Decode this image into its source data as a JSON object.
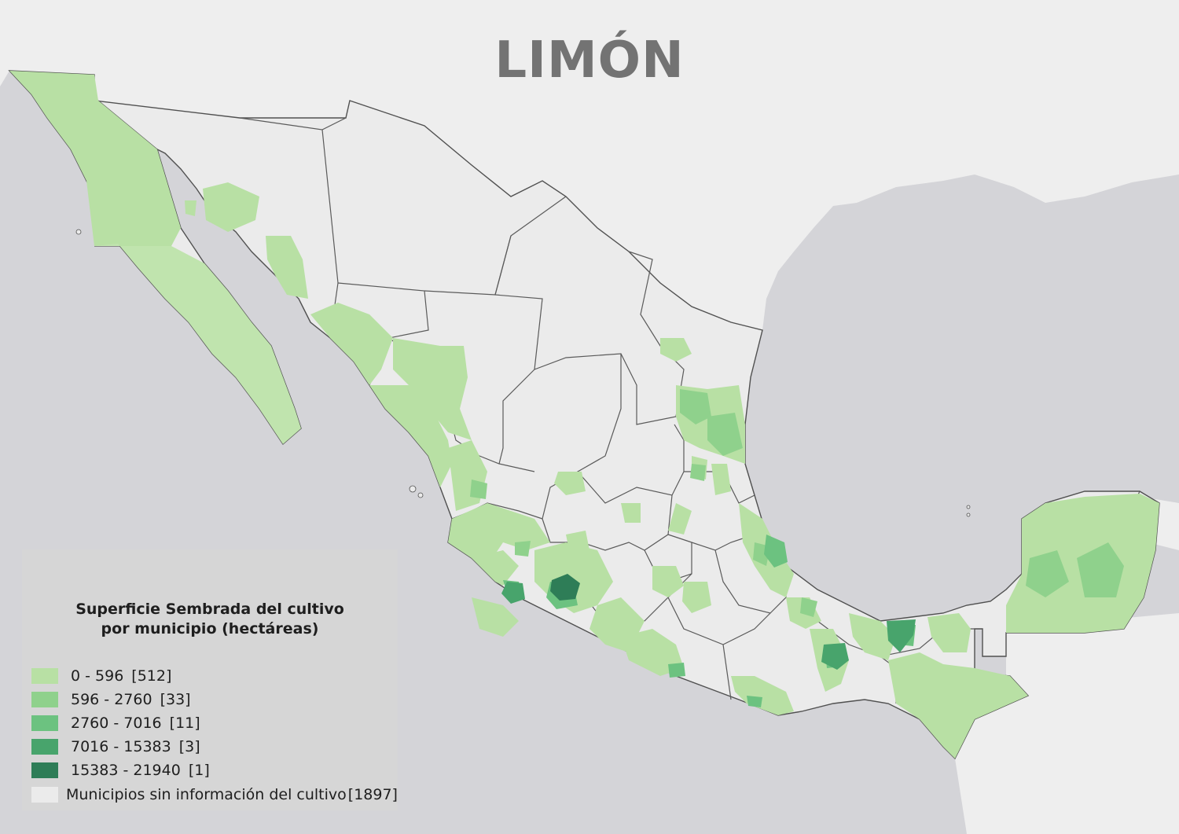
{
  "title": "LIMÓN",
  "colors": {
    "ocean": "#d4d4d8",
    "land_background": "#eeeeee",
    "no_info": "#ebebeb",
    "border": "#505050",
    "class_1": "#b8e0a4",
    "class_2": "#8fd18c",
    "class_3": "#6cc280",
    "class_4": "#48a46c",
    "class_5": "#2e7d57"
  },
  "legend": {
    "title_line1": "Superficie Sembrada del cultivo",
    "title_line2": "por municipio (hectáreas)",
    "classes": [
      {
        "range": "0 - 596",
        "count": "[512]",
        "color": "#b8e0a4"
      },
      {
        "range": "596 - 2760",
        "count": "[33]",
        "color": "#8fd18c"
      },
      {
        "range": "2760 - 7016",
        "count": "[11]",
        "color": "#6cc280"
      },
      {
        "range": "7016 - 15383",
        "count": "[3]",
        "color": "#48a46c"
      },
      {
        "range": "15383 - 21940",
        "count": "[1]",
        "color": "#2e7d57"
      },
      {
        "range": "Municipios sin información del cultivo",
        "count": "[1897]",
        "color": "#ebebeb"
      }
    ]
  }
}
